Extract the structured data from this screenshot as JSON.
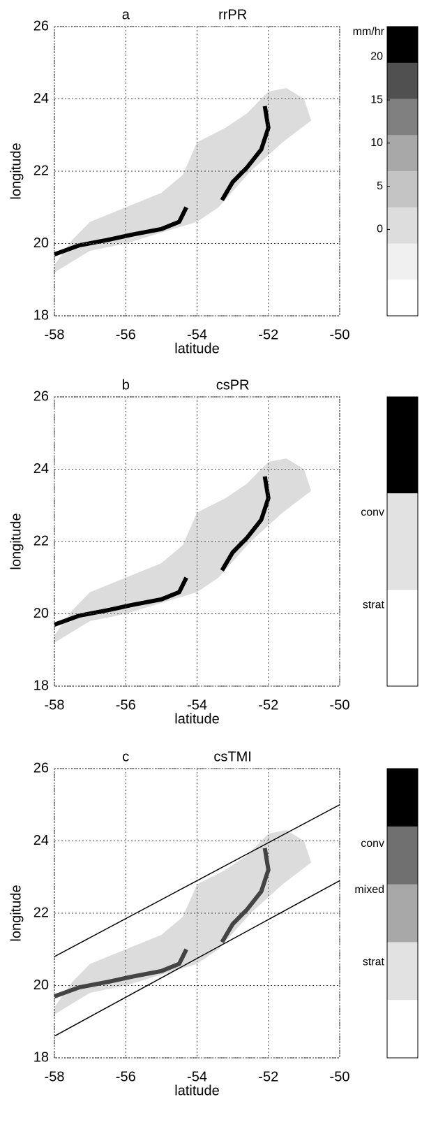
{
  "chart_data": [
    {
      "type": "map",
      "panel": "a",
      "title": "rrPR",
      "xlabel": "latitude",
      "ylabel": "longitude",
      "xlim": [
        -58,
        -50
      ],
      "ylim": [
        18,
        26
      ],
      "xticks": [
        -58,
        -56,
        -54,
        -52,
        -50
      ],
      "yticks": [
        18,
        20,
        22,
        24,
        26
      ],
      "grid": true,
      "colorbar": {
        "unit": "mm/hr",
        "clim": [
          -10,
          23.5
        ],
        "ticks": [
          0,
          5,
          10,
          15,
          20
        ],
        "colors": [
          "#ffffff",
          "#f0f0f0",
          "#dddddd",
          "#c4c4c4",
          "#a8a8a8",
          "#808080",
          "#505050",
          "#000000"
        ]
      }
    },
    {
      "type": "map",
      "panel": "b",
      "title": "csPR",
      "xlabel": "latitude",
      "ylabel": "longitude",
      "xlim": [
        -58,
        -50
      ],
      "ylim": [
        18,
        26
      ],
      "xticks": [
        -58,
        -56,
        -54,
        -52,
        -50
      ],
      "yticks": [
        18,
        20,
        22,
        24,
        26
      ],
      "grid": true,
      "colorbar": {
        "labels": [
          "conv",
          "strat"
        ],
        "colors": [
          "#000000",
          "#e2e2e2",
          "#ffffff"
        ]
      }
    },
    {
      "type": "map",
      "panel": "c",
      "title": "csTMI",
      "xlabel": "latitude",
      "ylabel": "longitude",
      "xlim": [
        -58,
        -50
      ],
      "ylim": [
        18,
        26
      ],
      "xticks": [
        -58,
        -56,
        -54,
        -52,
        -50
      ],
      "yticks": [
        18,
        20,
        22,
        24,
        26
      ],
      "grid": true,
      "lines": [
        {
          "x": [
            -58,
            -50
          ],
          "y": [
            20.8,
            25
          ]
        },
        {
          "x": [
            -58,
            -50
          ],
          "y": [
            18.6,
            22.9
          ]
        }
      ],
      "colorbar": {
        "labels": [
          "conv",
          "mixed",
          "strat"
        ],
        "colors": [
          "#000000",
          "#707070",
          "#a8a8a8",
          "#e2e2e2",
          "#ffffff"
        ]
      }
    }
  ]
}
